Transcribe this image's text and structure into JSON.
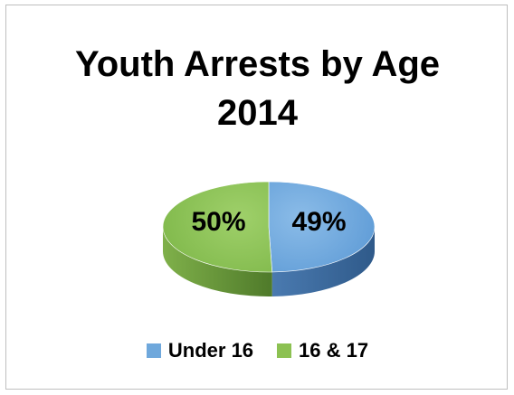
{
  "chart_data": {
    "type": "pie",
    "title_line1": "Youth Arrests by Age",
    "title_line2": "2014",
    "style": "3d",
    "legend_position": "bottom",
    "slices": [
      {
        "label": "Under 16",
        "value": 49,
        "display": "49%",
        "color": "#6fa8dc"
      },
      {
        "label": "16 & 17",
        "value": 50,
        "display": "50%",
        "color": "#8cc152"
      }
    ]
  }
}
